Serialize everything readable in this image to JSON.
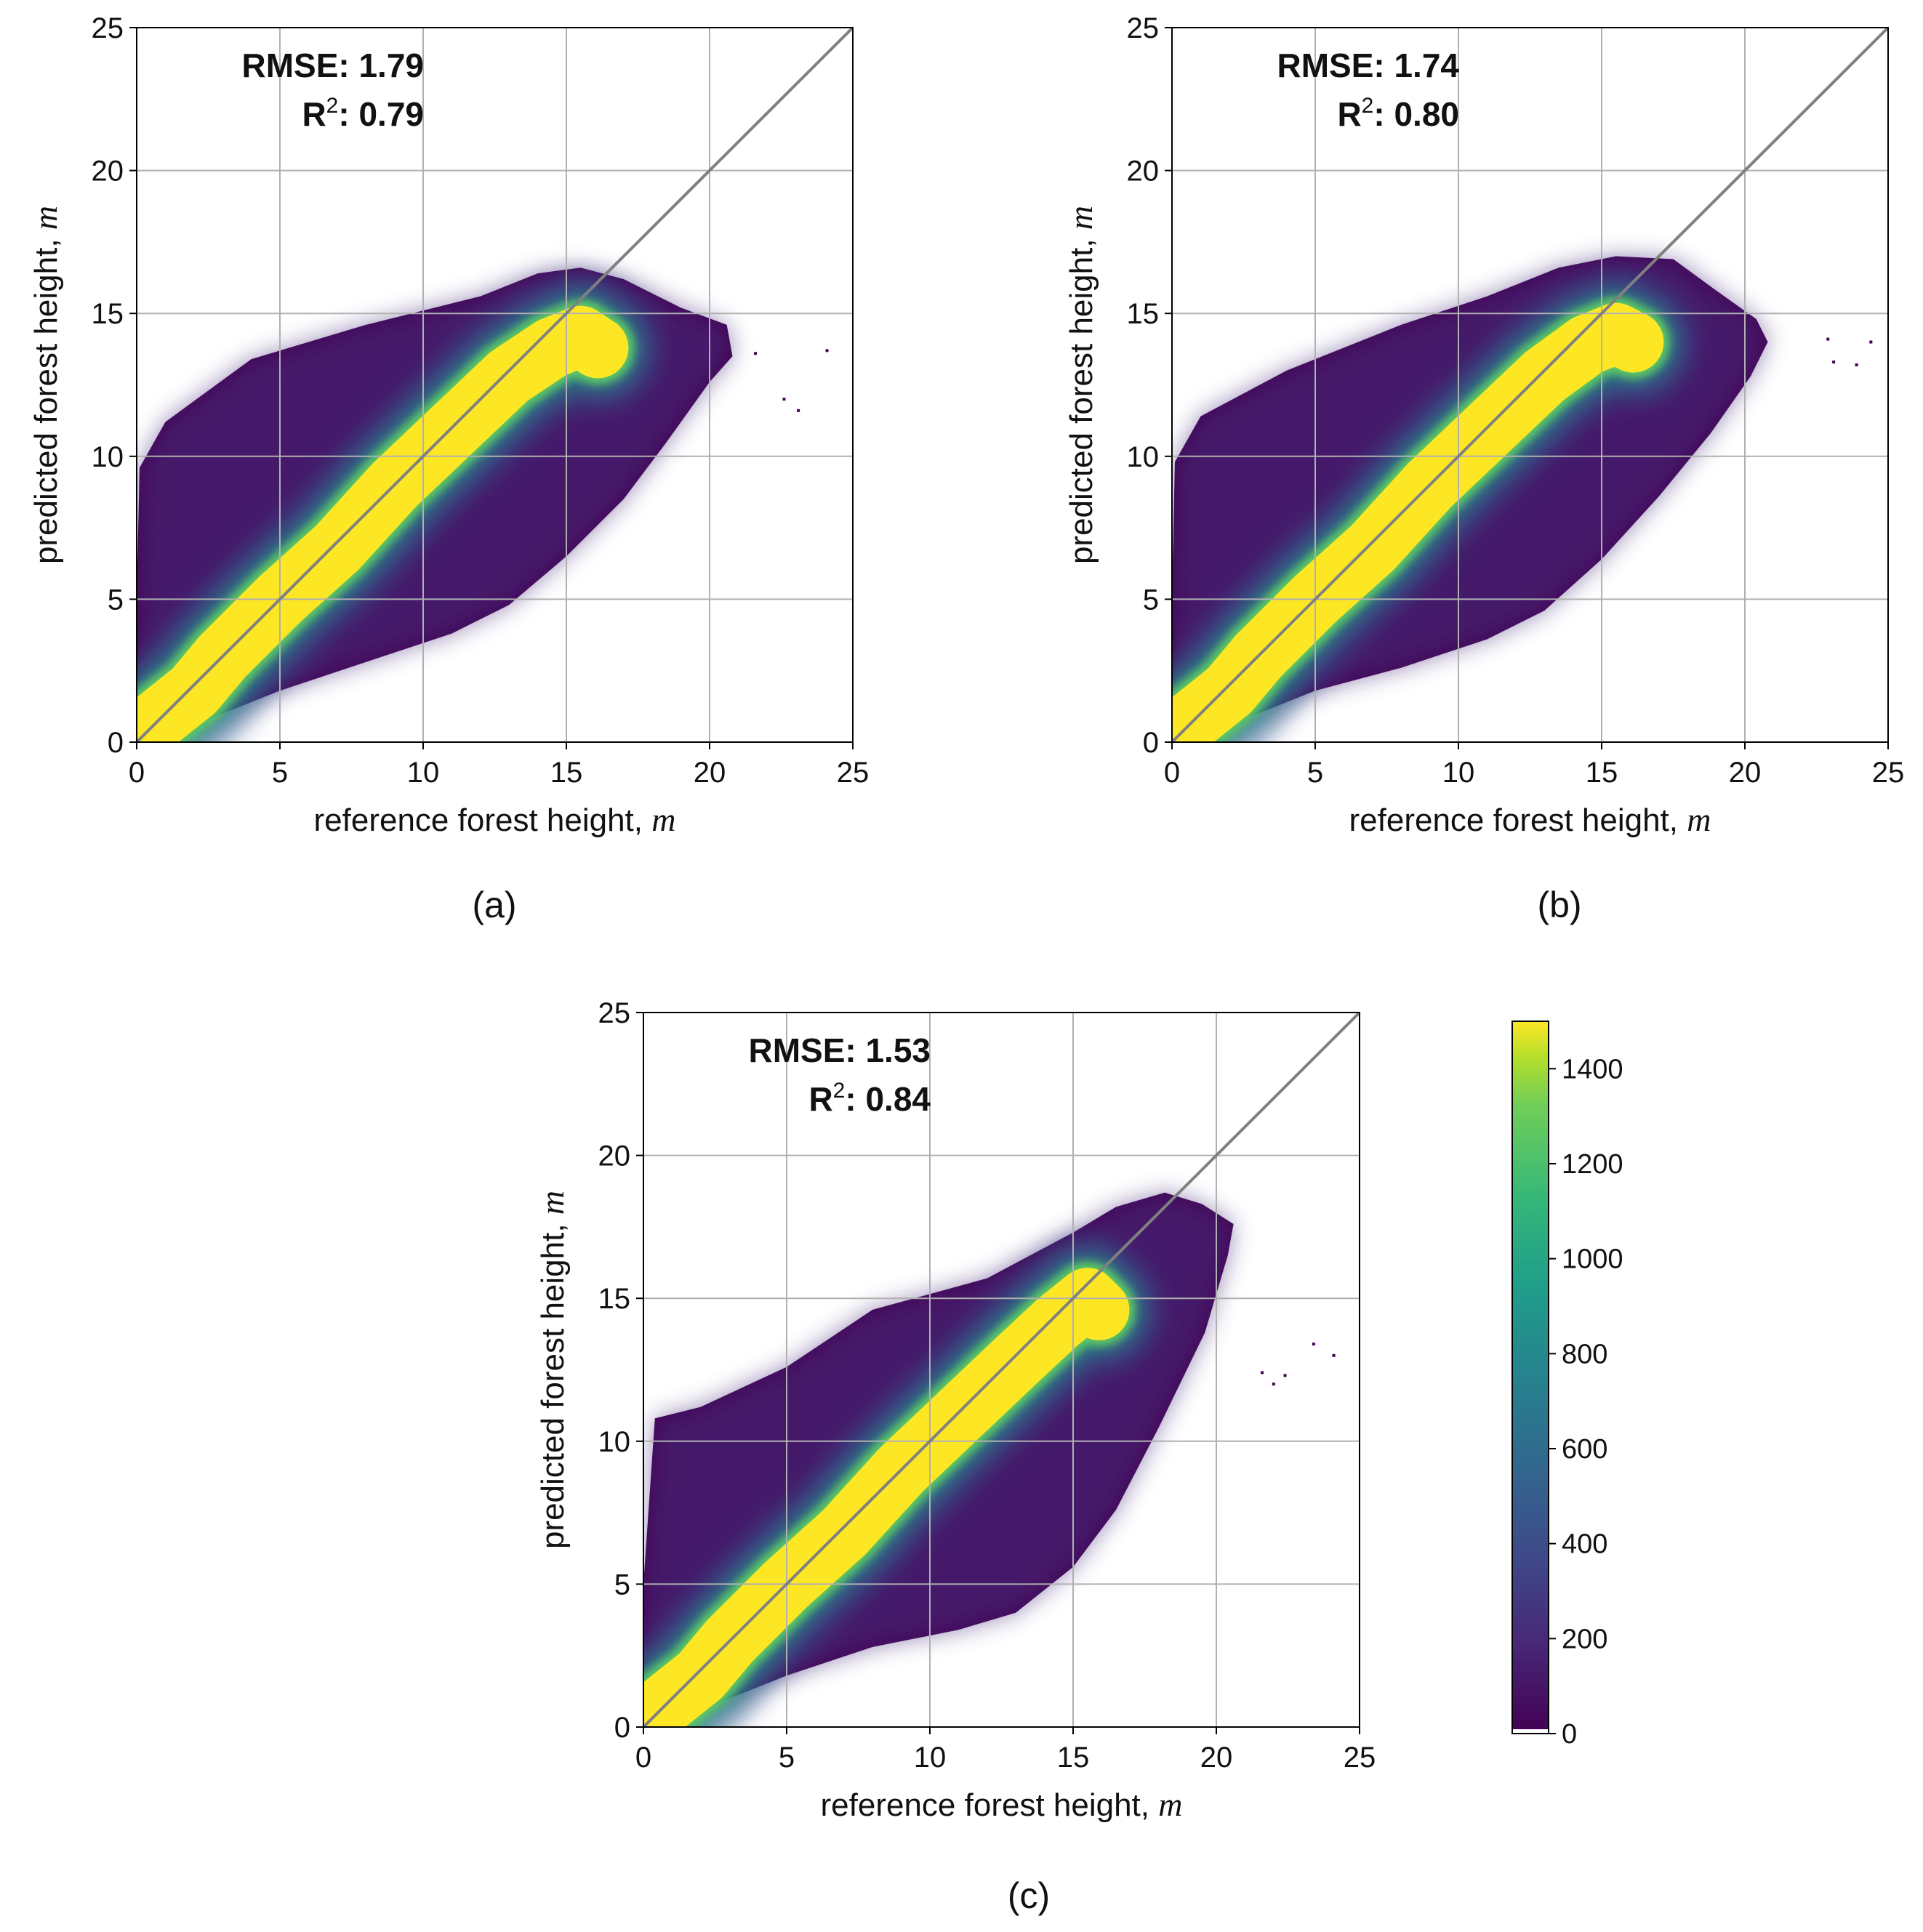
{
  "colors": {
    "background": "#ffffff",
    "grid": "#b0b0b0",
    "identity_line": "#808080",
    "viridis_dark": "#440154",
    "viridis_purple": "#472d7b",
    "viridis_blue": "#3b528b",
    "viridis_teal": "#21918c",
    "viridis_green": "#5ec962",
    "viridis_yellow": "#fde725"
  },
  "chart_data": [
    {
      "type": "heatmap",
      "panel_label": "(a)",
      "xlabel": "reference forest height,",
      "ylabel": "predicted forest height,",
      "unit": "m",
      "xlim": [
        0,
        25
      ],
      "ylim": [
        0,
        25
      ],
      "xticks": [
        "0",
        "5",
        "10",
        "15",
        "20",
        "25"
      ],
      "yticks": [
        "0",
        "5",
        "10",
        "15",
        "20",
        "25"
      ],
      "grid": true,
      "identity_line": [
        [
          0,
          0
        ],
        [
          25,
          25
        ]
      ],
      "stats": {
        "rmse_label": "RMSE:",
        "rmse": "1.79",
        "r2_label": "R",
        "r2_sup": "2",
        "r2_colon": ":",
        "r2": "0.79"
      },
      "density_envelope": [
        [
          0,
          0
        ],
        [
          2,
          0.6
        ],
        [
          5,
          1.8
        ],
        [
          8,
          2.8
        ],
        [
          11,
          3.8
        ],
        [
          13,
          4.8
        ],
        [
          15,
          6.5
        ],
        [
          17,
          8.5
        ],
        [
          18.5,
          10.5
        ],
        [
          20,
          12.6
        ],
        [
          20.8,
          13.5
        ],
        [
          20.6,
          14.6
        ],
        [
          19,
          15.2
        ],
        [
          17,
          16.2
        ],
        [
          15.5,
          16.6
        ],
        [
          14,
          16.4
        ],
        [
          12,
          15.6
        ],
        [
          8,
          14.6
        ],
        [
          4,
          13.4
        ],
        [
          1,
          11.2
        ],
        [
          0.1,
          9.6
        ],
        [
          0,
          5
        ]
      ],
      "density_ridge": [
        [
          0,
          0.2
        ],
        [
          1,
          1
        ],
        [
          2,
          1.8
        ],
        [
          3,
          3
        ],
        [
          5,
          5
        ],
        [
          7,
          6.8
        ],
        [
          9,
          9
        ],
        [
          11,
          10.9
        ],
        [
          13,
          12.8
        ],
        [
          14.5,
          13.8
        ],
        [
          15.5,
          14.2
        ],
        [
          16.1,
          13.8
        ]
      ],
      "outliers": [
        [
          21.6,
          13.6
        ],
        [
          22.6,
          12.0
        ],
        [
          23.1,
          11.6
        ],
        [
          24.1,
          13.7
        ]
      ]
    },
    {
      "type": "heatmap",
      "panel_label": "(b)",
      "xlabel": "reference forest height,",
      "ylabel": "predicted forest height,",
      "unit": "m",
      "xlim": [
        0,
        25
      ],
      "ylim": [
        0,
        25
      ],
      "xticks": [
        "0",
        "5",
        "10",
        "15",
        "20",
        "25"
      ],
      "yticks": [
        "0",
        "5",
        "10",
        "15",
        "20",
        "25"
      ],
      "grid": true,
      "identity_line": [
        [
          0,
          0
        ],
        [
          25,
          25
        ]
      ],
      "stats": {
        "rmse_label": "RMSE:",
        "rmse": "1.74",
        "r2_label": "R",
        "r2_sup": "2",
        "r2_colon": ":",
        "r2": "0.80"
      },
      "density_envelope": [
        [
          0,
          0
        ],
        [
          2,
          0.6
        ],
        [
          5,
          1.8
        ],
        [
          8,
          2.6
        ],
        [
          11,
          3.6
        ],
        [
          13,
          4.6
        ],
        [
          15,
          6.4
        ],
        [
          17,
          8.6
        ],
        [
          18.8,
          10.8
        ],
        [
          20.2,
          12.8
        ],
        [
          20.8,
          14.0
        ],
        [
          20.4,
          14.8
        ],
        [
          19,
          15.8
        ],
        [
          17.5,
          16.9
        ],
        [
          15.5,
          17.0
        ],
        [
          13.5,
          16.6
        ],
        [
          11,
          15.6
        ],
        [
          8,
          14.6
        ],
        [
          4,
          13.0
        ],
        [
          1,
          11.4
        ],
        [
          0.1,
          9.8
        ],
        [
          0,
          5
        ]
      ],
      "density_ridge": [
        [
          0,
          0.2
        ],
        [
          1,
          1
        ],
        [
          2,
          1.8
        ],
        [
          3,
          3
        ],
        [
          5,
          5
        ],
        [
          7,
          6.8
        ],
        [
          9,
          9
        ],
        [
          11,
          10.9
        ],
        [
          13,
          12.8
        ],
        [
          14.5,
          13.9
        ],
        [
          15.5,
          14.3
        ],
        [
          16.1,
          14.0
        ]
      ],
      "outliers": [
        [
          22.9,
          14.1
        ],
        [
          23.1,
          13.3
        ],
        [
          23.9,
          13.2
        ],
        [
          24.4,
          14.0
        ]
      ]
    },
    {
      "type": "heatmap",
      "panel_label": "(c)",
      "xlabel": "reference forest height,",
      "ylabel": "predicted forest height,",
      "unit": "m",
      "xlim": [
        0,
        25
      ],
      "ylim": [
        0,
        25
      ],
      "xticks": [
        "0",
        "5",
        "10",
        "15",
        "20",
        "25"
      ],
      "yticks": [
        "0",
        "5",
        "10",
        "15",
        "20",
        "25"
      ],
      "grid": true,
      "identity_line": [
        [
          0,
          0
        ],
        [
          25,
          25
        ]
      ],
      "stats": {
        "rmse_label": "RMSE:",
        "rmse": "1.53",
        "r2_label": "R",
        "r2_sup": "2",
        "r2_colon": ":",
        "r2": "0.84"
      },
      "density_envelope": [
        [
          0,
          0
        ],
        [
          2,
          0.6
        ],
        [
          5,
          1.8
        ],
        [
          8,
          2.8
        ],
        [
          11,
          3.4
        ],
        [
          13,
          4.0
        ],
        [
          15,
          5.6
        ],
        [
          16.5,
          7.6
        ],
        [
          18,
          10.5
        ],
        [
          19.6,
          13.8
        ],
        [
          20.4,
          16.5
        ],
        [
          20.6,
          17.6
        ],
        [
          19.5,
          18.3
        ],
        [
          18.2,
          18.7
        ],
        [
          16.5,
          18.2
        ],
        [
          15,
          17.3
        ],
        [
          12,
          15.7
        ],
        [
          8,
          14.6
        ],
        [
          5,
          12.6
        ],
        [
          2,
          11.2
        ],
        [
          0.4,
          10.8
        ],
        [
          0,
          5
        ]
      ],
      "density_ridge": [
        [
          0,
          0.2
        ],
        [
          1,
          1
        ],
        [
          2,
          1.8
        ],
        [
          3,
          3
        ],
        [
          5,
          5
        ],
        [
          7,
          6.8
        ],
        [
          9,
          9
        ],
        [
          11,
          10.9
        ],
        [
          13,
          12.8
        ],
        [
          14.5,
          14.2
        ],
        [
          15.5,
          15.0
        ],
        [
          15.9,
          14.6
        ]
      ],
      "outliers": [
        [
          21.6,
          12.4
        ],
        [
          22.0,
          12.0
        ],
        [
          22.4,
          12.3
        ],
        [
          23.4,
          13.4
        ],
        [
          24.1,
          13.0
        ]
      ]
    }
  ],
  "colorbar": {
    "colormap": "viridis",
    "min": 0,
    "max": 1500,
    "ticks": [
      "0",
      "200",
      "400",
      "600",
      "800",
      "1000",
      "1200",
      "1400"
    ],
    "tick_values": [
      0,
      200,
      400,
      600,
      800,
      1000,
      1200,
      1400
    ]
  }
}
